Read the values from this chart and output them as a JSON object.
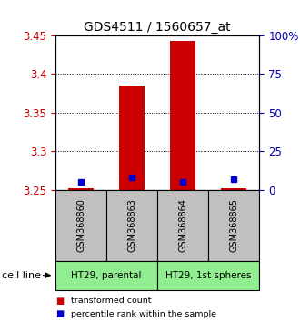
{
  "title": "GDS4511 / 1560657_at",
  "samples": [
    "GSM368860",
    "GSM368863",
    "GSM368864",
    "GSM368865"
  ],
  "transformed_count": [
    3.252,
    3.385,
    3.443,
    3.252
  ],
  "percentile_rank": [
    5,
    8,
    5,
    7
  ],
  "ylim": [
    3.25,
    3.45
  ],
  "y_ticks": [
    3.25,
    3.3,
    3.35,
    3.4,
    3.45
  ],
  "y_ticks_right": [
    0,
    25,
    50,
    75,
    100
  ],
  "y_ticks_right_labels": [
    "0",
    "25",
    "50",
    "75",
    "100%"
  ],
  "bar_color": "#CC0000",
  "percentile_color": "#0000CC",
  "sample_box_color": "#C0C0C0",
  "group_box_color": "#90EE90",
  "left_tick_color": "#CC0000",
  "right_tick_color": "#0000BB",
  "baseline": 3.25,
  "cell_line_label": "cell line",
  "legend_red": "transformed count",
  "legend_blue": "percentile rank within the sample",
  "groups": [
    {
      "name": "HT29, parental",
      "indices": [
        0,
        1
      ]
    },
    {
      "name": "HT29, 1st spheres",
      "indices": [
        2,
        3
      ]
    }
  ]
}
